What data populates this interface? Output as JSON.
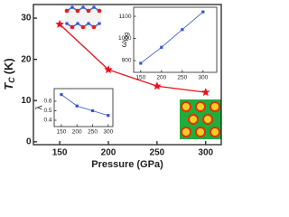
{
  "chart_data": [
    {
      "type": "line",
      "x_label": "Pressure (GPa)",
      "y_label": [
        "T",
        "C",
        "(K)"
      ],
      "x": [
        150,
        200,
        250,
        300
      ],
      "values": [
        28.5,
        17.5,
        13.5,
        12
      ],
      "color": "#e8141c",
      "marker": "star",
      "xlim": [
        123,
        316
      ],
      "xticks": [
        150,
        200,
        250,
        300
      ],
      "ylim": [
        -0.7,
        33.3
      ],
      "yticks": [
        0,
        10,
        20,
        30
      ],
      "grid": false
    },
    {
      "type": "line",
      "y_label": [
        "ω",
        "log"
      ],
      "x": [
        150,
        200,
        250,
        300
      ],
      "values": [
        888,
        960,
        1040,
        1120
      ],
      "color": "#3355cc",
      "marker": "square",
      "xlim": [
        133,
        333
      ],
      "xticks": [
        150,
        200,
        250,
        300
      ],
      "ylim": [
        847,
        1141
      ],
      "yticks": [
        900,
        1000,
        1100
      ],
      "grid": false
    },
    {
      "type": "line",
      "y_label": [
        "λ"
      ],
      "x": [
        150,
        200,
        250,
        300
      ],
      "values": [
        0.67,
        0.55,
        0.5,
        0.45
      ],
      "color": "#3355cc",
      "marker": "square",
      "xlim": [
        127,
        315
      ],
      "xticks": [
        150,
        200,
        250,
        300
      ],
      "ylim": [
        0.333,
        0.733
      ],
      "yticks": [
        0.4,
        0.5,
        0.6
      ],
      "grid": false
    }
  ]
}
